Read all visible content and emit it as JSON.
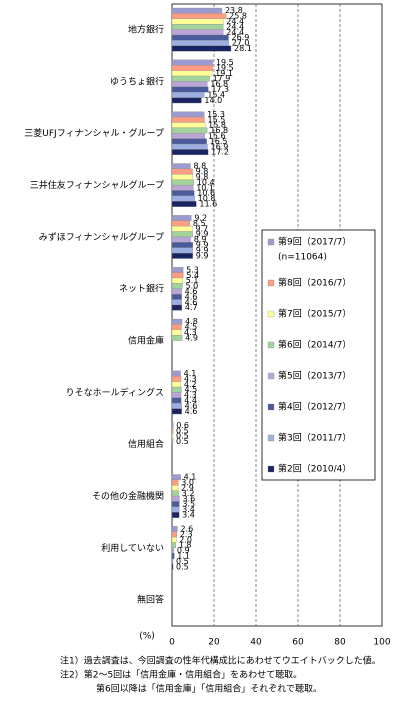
{
  "chart_data": {
    "type": "hbar",
    "categories": [
      "地方銀行",
      "ゆうちょ銀行",
      "三菱UFJフィナンシャル・グループ",
      "三井住友フィナンシャルグループ",
      "みずほフィナンシャルグループ",
      "ネット銀行",
      "信用金庫",
      "りそなホールディングス",
      "信用組合",
      "その他の金融機関",
      "利用していない",
      "無回答"
    ],
    "series": [
      {
        "name": "第9回（2017/7）",
        "color": "#9b9bcf",
        "values": [
          23.8,
          19.5,
          15.3,
          8.8,
          9.2,
          5.3,
          4.8,
          4.1,
          0.6,
          4.1,
          2.6,
          null
        ],
        "value_labels": [
          "23.8",
          "19.5",
          "15.3",
          "8.8",
          "9.2",
          "5.3",
          "4.8",
          "4.1",
          "0.6",
          "4.1",
          "2.6",
          null
        ]
      },
      {
        "name": "第8回（2016/7）",
        "color": "#ff9c84",
        "values": [
          25.8,
          19.5,
          15.5,
          9.8,
          8.5,
          5.4,
          4.5,
          4.3,
          0.5,
          3.0,
          2.3,
          null
        ],
        "value_labels": [
          "25.8",
          "19.5",
          "15.5",
          "9.8",
          "8.5",
          "5.4",
          "4.5",
          "4.3",
          "0.5",
          "3.0",
          "2.3",
          null
        ]
      },
      {
        "name": "第7回（2015/7）",
        "color": "#ffff99",
        "values": [
          24.4,
          19.1,
          15.8,
          9.8,
          9.7,
          5.1,
          4.3,
          4.2,
          0.5,
          2.9,
          2.0,
          null
        ],
        "value_labels": [
          "24.4",
          "19.1",
          "15.8",
          "9.8",
          "9.7",
          "5.1",
          "4.3",
          "4.2",
          "0.5",
          "2.9",
          "2.0",
          null
        ]
      },
      {
        "name": "第6回（2014/7）",
        "color": "#a3d39c",
        "values": [
          24.4,
          17.9,
          16.8,
          10.4,
          9.9,
          5.0,
          4.9,
          4.5,
          0.5,
          3.2,
          1.8,
          null
        ],
        "value_labels": [
          "24.4",
          "17.9",
          "16.8",
          "10.4",
          "9.9",
          "5.0",
          "4.9",
          "4.5",
          "0.5",
          "3.2",
          "1.8",
          null
        ]
      },
      {
        "name": "第5回（2013/7）",
        "color": "#b9a6d6",
        "values": [
          24.4,
          16.8,
          15.6,
          10.1,
          8.9,
          4.6,
          null,
          4.3,
          null,
          3.6,
          0.9,
          null
        ],
        "value_labels": [
          "24.4",
          "16.8",
          "15.6",
          "10.1",
          "8.9",
          "4.6",
          null,
          "4.3",
          null,
          "3.6",
          "0.9",
          null
        ]
      },
      {
        "name": "第4回（2012/7）",
        "color": "#4a5a9c",
        "values": [
          26.9,
          17.3,
          16.5,
          10.6,
          9.9,
          4.6,
          null,
          4.4,
          null,
          3.5,
          1.1,
          null
        ],
        "value_labels": [
          "26.9",
          "17.3",
          "16.5",
          "10.6",
          "9.9",
          "4.6",
          null,
          "4.4",
          null,
          "3.5",
          "1.1",
          null
        ]
      },
      {
        "name": "第3回（2011/7）",
        "color": "#9dafe0",
        "values": [
          27.0,
          15.4,
          16.9,
          10.8,
          9.9,
          4.6,
          null,
          4.6,
          null,
          3.4,
          0.5,
          null
        ],
        "value_labels": [
          "27.0",
          "15.4",
          "16.9",
          "10.8",
          "9.9",
          "4.6",
          null,
          "4.6",
          null,
          "3.4",
          "0.5",
          null
        ]
      },
      {
        "name": "第2回（2010/4）",
        "color": "#1b2463",
        "values": [
          28.1,
          14.0,
          17.2,
          11.6,
          9.9,
          4.7,
          null,
          4.6,
          null,
          3.4,
          0.5,
          null
        ],
        "value_labels": [
          "28.1",
          "14.0",
          "17.2",
          "11.6",
          "9.9",
          "4.7",
          null,
          "4.6",
          null,
          "3.4",
          "0.5",
          null
        ]
      }
    ],
    "legend_note": "(n=11064)",
    "xlabel": "(%)",
    "xlim": [
      0,
      100
    ],
    "xticks": [
      0,
      20,
      40,
      60,
      80,
      100
    ],
    "grid": true,
    "notes": [
      "注1）過去調査は、今回調査の性年代構成比にあわせてウエイトバックした値。",
      "注2）第2～5回は「信用金庫・信用組合」をあわせて聴取。",
      "第6回以降は「信用金庫」「信用組合」それぞれで聴取。"
    ]
  }
}
